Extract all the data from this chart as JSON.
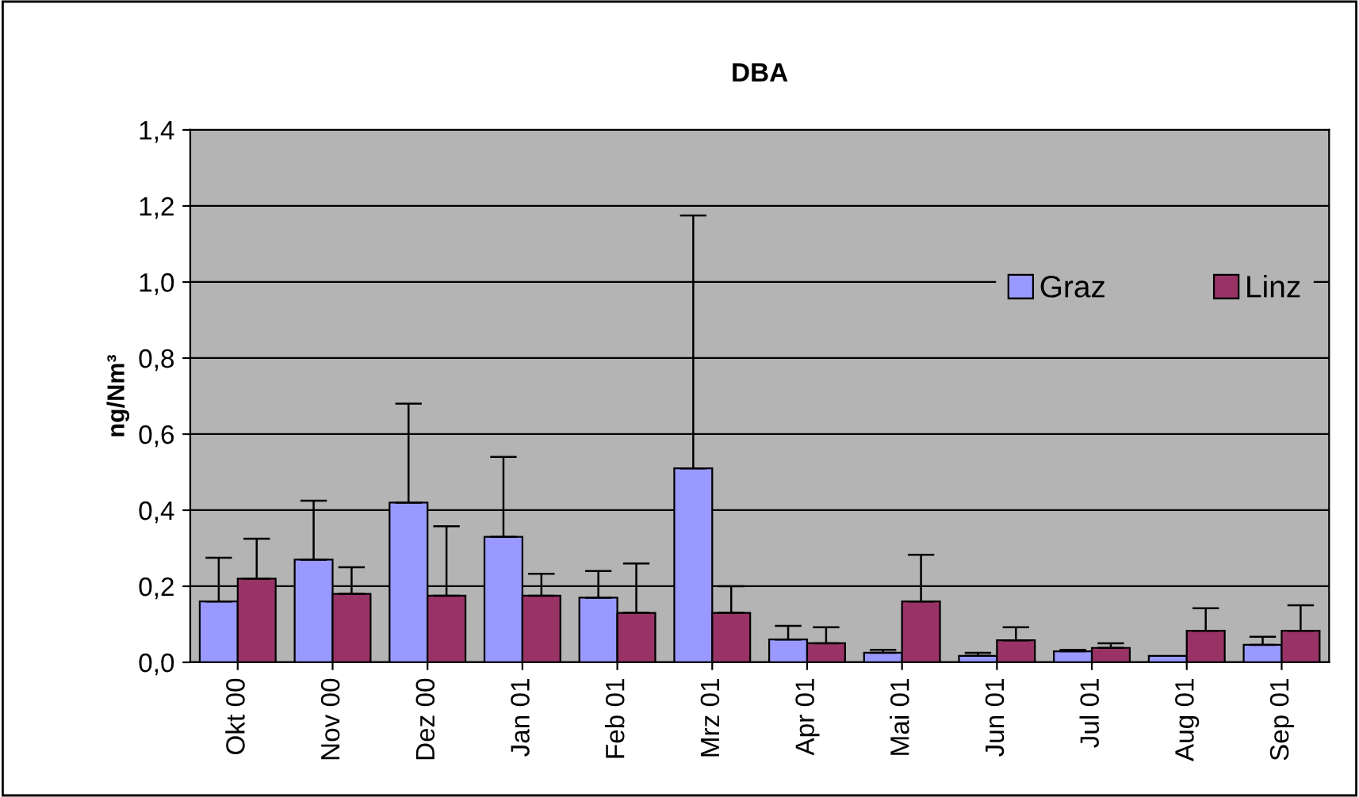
{
  "chart_data": {
    "type": "bar",
    "title": "DBA",
    "ylabel": "ng/Nm³",
    "categories": [
      "Okt 00",
      "Nov 00",
      "Dez 00",
      "Jan 01",
      "Feb 01",
      "Mrz 01",
      "Apr 01",
      "Mai 01",
      "Jun 01",
      "Jul 01",
      "Aug 01",
      "Sep 01"
    ],
    "series": [
      {
        "name": "Graz",
        "color": "#9999ff",
        "values": [
          0.16,
          0.27,
          0.42,
          0.33,
          0.17,
          0.51,
          0.06,
          0.025,
          0.017,
          0.029,
          0.017,
          0.046
        ],
        "errors": [
          [
            0.16,
            0.275
          ],
          [
            0.27,
            0.425
          ],
          [
            0.42,
            0.68
          ],
          [
            0.33,
            0.54
          ],
          [
            0.17,
            0.24
          ],
          [
            0.51,
            1.175
          ],
          [
            0.06,
            0.096
          ],
          [
            0.025,
            0.033
          ],
          [
            0.017,
            0.025
          ],
          [
            0.029,
            0.033
          ],
          null,
          [
            0.046,
            0.067
          ]
        ]
      },
      {
        "name": "Linz",
        "color": "#993366",
        "values": [
          0.22,
          0.18,
          0.175,
          0.175,
          0.13,
          0.13,
          0.05,
          0.16,
          0.058,
          0.038,
          0.083,
          0.083
        ],
        "errors": [
          [
            0.22,
            0.325
          ],
          [
            0.18,
            0.25
          ],
          [
            0.175,
            0.358
          ],
          [
            0.175,
            0.233
          ],
          [
            0.13,
            0.26
          ],
          [
            0.13,
            0.2
          ],
          [
            0.05,
            0.092
          ],
          [
            0.16,
            0.283
          ],
          [
            0.058,
            0.092
          ],
          [
            0.038,
            0.05
          ],
          [
            0.083,
            0.142
          ],
          [
            0.083,
            0.15
          ]
        ]
      }
    ],
    "ylim": [
      0,
      1.4
    ],
    "yticks": [
      {
        "value": 0,
        "label": "0,0"
      },
      {
        "value": 0.2,
        "label": "0,2"
      },
      {
        "value": 0.4,
        "label": "0,4"
      },
      {
        "value": 0.6,
        "label": "0,6"
      },
      {
        "value": 0.8,
        "label": "0,8"
      },
      {
        "value": 1.0,
        "label": "1,0"
      },
      {
        "value": 1.2,
        "label": "1,2"
      },
      {
        "value": 1.4,
        "label": "1,4"
      }
    ],
    "grid": "y",
    "legend": "top right"
  }
}
